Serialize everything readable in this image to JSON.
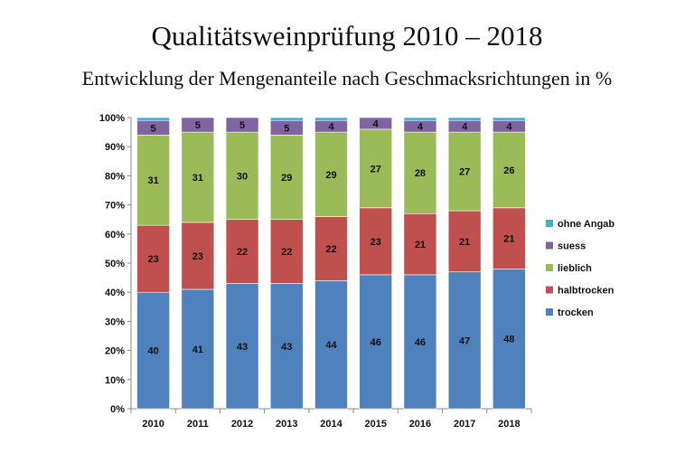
{
  "chart_data": {
    "type": "bar",
    "stacked": true,
    "title": "Qualitätsweinprüfung 2010 – 2018",
    "subtitle": "Entwicklung der Mengenanteile nach Geschmacksrichtungen in %",
    "categories": [
      "2010",
      "2011",
      "2012",
      "2013",
      "2014",
      "2015",
      "2016",
      "2017",
      "2018"
    ],
    "ylim": [
      0,
      100
    ],
    "y_ticks": [
      "0%",
      "10%",
      "20%",
      "30%",
      "40%",
      "50%",
      "60%",
      "70%",
      "80%",
      "90%",
      "100%"
    ],
    "grid": false,
    "legend_position": "right",
    "series": [
      {
        "name": "trocken",
        "color": "#4F81BD",
        "values": [
          40,
          41,
          43,
          43,
          44,
          46,
          46,
          47,
          48
        ]
      },
      {
        "name": "halbtrocken",
        "color": "#C0504D",
        "values": [
          23,
          23,
          22,
          22,
          22,
          23,
          21,
          21,
          21
        ]
      },
      {
        "name": "lieblich",
        "color": "#9BBB59",
        "values": [
          31,
          31,
          30,
          29,
          29,
          27,
          28,
          27,
          26
        ]
      },
      {
        "name": "suess",
        "color": "#8064A2",
        "values": [
          5,
          5,
          5,
          5,
          4,
          4,
          4,
          4,
          4
        ]
      },
      {
        "name": "ohne Angab",
        "color": "#4BACC6",
        "values": [
          1,
          0,
          0,
          1,
          1,
          0,
          1,
          1,
          1
        ]
      }
    ],
    "data_labels": {
      "trocken": [
        "40",
        "41",
        "43",
        "43",
        "44",
        "46",
        "46",
        "47",
        "48"
      ],
      "halbtrocken": [
        "23",
        "23",
        "22",
        "22",
        "22",
        "23",
        "21",
        "21",
        "21"
      ],
      "lieblich": [
        "31",
        "31",
        "30",
        "29",
        "29",
        "27",
        "28",
        "27",
        "26"
      ],
      "suess": [
        "5",
        "5",
        "5",
        "5",
        "4",
        "4",
        "4",
        "4",
        "4"
      ]
    }
  }
}
